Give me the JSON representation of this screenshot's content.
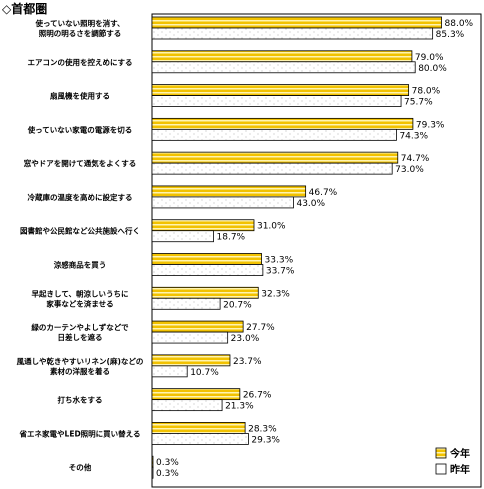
{
  "region_title": "◇首都圏",
  "chart_data": {
    "type": "bar",
    "orientation": "horizontal",
    "xlim": [
      0,
      100
    ],
    "grid": false,
    "legend_position": "bottom-right",
    "colors": {
      "今年": "#f2c200",
      "昨年": "#ffffff"
    },
    "categories": [
      [
        "使っていない照明を消す、",
        "照明の明るさを調節する"
      ],
      [
        "エアコンの使用を控えめにする"
      ],
      [
        "扇風機を使用する"
      ],
      [
        "使っていない家電の電源を切る"
      ],
      [
        "窓やドアを開けて通気をよくする"
      ],
      [
        "冷蔵庫の温度を高めに設定する"
      ],
      [
        "図書館や公民館など公共施設へ行く"
      ],
      [
        "涼感商品を買う"
      ],
      [
        "早起きして、朝涼しいうちに",
        "家事などを済ませる"
      ],
      [
        "緑のカーテンやよしずなどで",
        "日差しを遮る"
      ],
      [
        "風通しや乾きやすいリネン(麻)などの",
        "素材の洋服を着る"
      ],
      [
        "打ち水をする"
      ],
      [
        "省エネ家電やLED照明に買い替える"
      ],
      [
        "その他"
      ]
    ],
    "series": [
      {
        "name": "今年",
        "values": [
          88.0,
          79.0,
          78.0,
          79.3,
          74.7,
          46.7,
          31.0,
          33.3,
          32.3,
          27.7,
          23.7,
          26.7,
          28.3,
          0.3
        ]
      },
      {
        "name": "昨年",
        "values": [
          85.3,
          80.0,
          75.7,
          74.3,
          73.0,
          43.0,
          18.7,
          33.7,
          20.7,
          23.0,
          10.7,
          21.3,
          29.3,
          0.3
        ]
      }
    ],
    "value_labels": {
      "今年": [
        "88.0%",
        "79.0%",
        "78.0%",
        "79.3%",
        "74.7%",
        "46.7%",
        "31.0%",
        "33.3%",
        "32.3%",
        "27.7%",
        "23.7%",
        "26.7%",
        "28.3%",
        "0.3%"
      ],
      "昨年": [
        "85.3%",
        "80.0%",
        "75.7%",
        "74.3%",
        "73.0%",
        "43.0%",
        "18.7%",
        "33.7%",
        "20.7%",
        "23.0%",
        "10.7%",
        "21.3%",
        "29.3%",
        "0.3%"
      ]
    }
  }
}
